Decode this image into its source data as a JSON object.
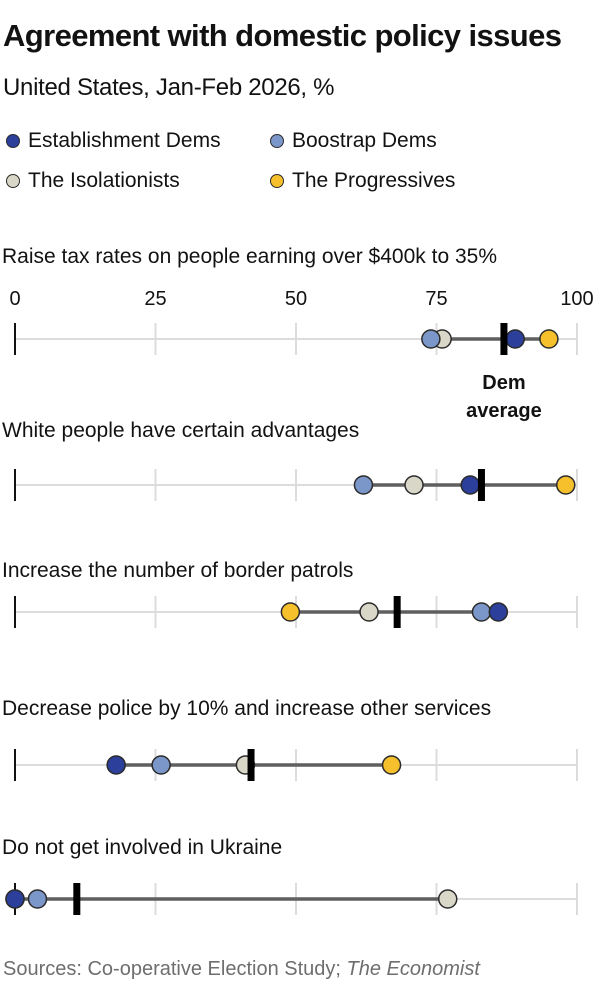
{
  "chart_data": {
    "type": "dot-range",
    "title": "Agreement with domestic policy issues",
    "subtitle": "United States, Jan-Feb 2026, %",
    "xlim": [
      0,
      100
    ],
    "ticks": [
      0,
      25,
      50,
      75,
      100
    ],
    "tick_labels": [
      "0",
      "25",
      "50",
      "75",
      "100"
    ],
    "legend": [
      {
        "name": "Establishment Dems",
        "color": "#2b3f9b"
      },
      {
        "name": "Boostrap Dems",
        "color": "#7b96c8"
      },
      {
        "name": "The Isolationists",
        "color": "#d8d7c8"
      },
      {
        "name": "The Progressives",
        "color": "#f5c02c"
      }
    ],
    "average_label_line1": "Dem",
    "average_label_line2": "average",
    "questions": [
      {
        "label": "Raise tax rates on people earning over $400k to 35%",
        "average": 87,
        "values": {
          "Establishment Dems": 89,
          "Boostrap Dems": 74,
          "The Isolationists": 76,
          "The Progressives": 95
        }
      },
      {
        "label": "White people have certain advantages",
        "average": 83,
        "values": {
          "Establishment Dems": 81,
          "Boostrap Dems": 62,
          "The Isolationists": 71,
          "The Progressives": 98
        }
      },
      {
        "label": "Increase the number of border patrols",
        "average": 68,
        "values": {
          "Establishment Dems": 86,
          "Boostrap Dems": 83,
          "The Isolationists": 63,
          "The Progressives": 49
        }
      },
      {
        "label": "Decrease police by 10% and increase other services",
        "average": 42,
        "values": {
          "Establishment Dems": 18,
          "Boostrap Dems": 26,
          "The Isolationists": 41,
          "The Progressives": 67
        }
      },
      {
        "label": "Do not get involved in Ukraine",
        "average": 11,
        "values": {
          "Establishment Dems": 0,
          "Boostrap Dems": 4,
          "The Isolationists": 77,
          "The Progressives": 0
        }
      }
    ],
    "source_prefix": "Sources: Co-operative Election Study; ",
    "source_italic": "The Economist"
  }
}
